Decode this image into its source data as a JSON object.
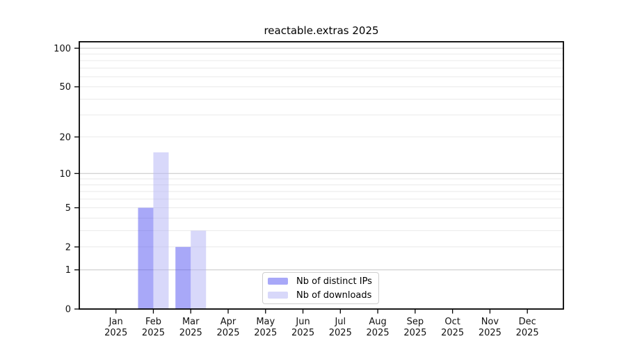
{
  "page": {
    "background": "#ffffff"
  },
  "chart_data": {
    "type": "bar",
    "title": "reactable.extras 2025",
    "x": {
      "categories": [
        "Jan",
        "Feb",
        "Mar",
        "Apr",
        "May",
        "Jun",
        "Jul",
        "Aug",
        "Sep",
        "Oct",
        "Nov",
        "Dec"
      ],
      "year_label": "2025"
    },
    "y_axis": {
      "scale": "log1p",
      "ticks": [
        0,
        1,
        2,
        5,
        10,
        20,
        50,
        100
      ],
      "major_gridlines": [
        1,
        10,
        100
      ],
      "minor_gridlines": [
        2,
        3,
        4,
        5,
        6,
        7,
        8,
        9,
        20,
        30,
        40,
        50,
        60,
        70,
        80,
        90
      ]
    },
    "series": [
      {
        "name": "Nb of distinct IPs",
        "color": "#5151f2",
        "opacity": 0.5,
        "values": [
          0,
          5,
          2,
          0,
          0,
          0,
          0,
          0,
          0,
          0,
          0,
          0
        ]
      },
      {
        "name": "Nb of downloads",
        "color": "#b1b1f5",
        "opacity": 0.5,
        "values": [
          0,
          15,
          3,
          0,
          0,
          0,
          0,
          0,
          0,
          0,
          0,
          0
        ]
      }
    ],
    "colors": {
      "axis": "#000000",
      "tick_labels": "#111111",
      "major_grid": "#c6c6c6",
      "minor_grid": "#e9e9e9"
    },
    "grid": true,
    "legend_position": "bottom-center"
  }
}
